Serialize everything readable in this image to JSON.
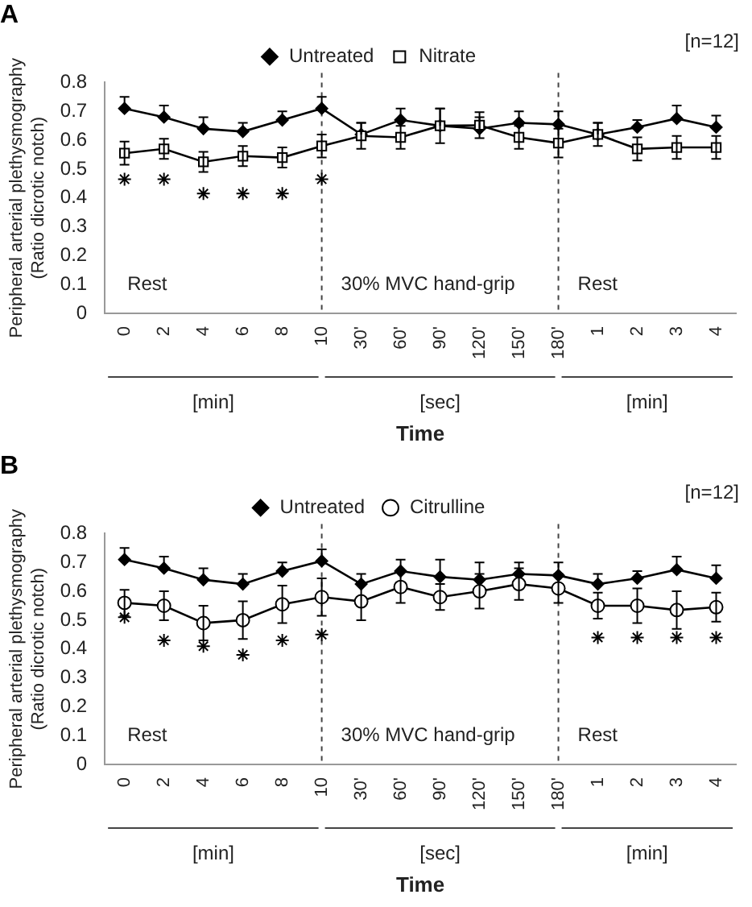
{
  "chart_data": [
    {
      "type": "line",
      "title": "A",
      "categories": [
        "0",
        "2",
        "4",
        "6",
        "8",
        "10",
        "30'",
        "60'",
        "90'",
        "120'",
        "150'",
        "180'",
        "1",
        "2",
        "3",
        "4"
      ],
      "xlabel": "Time",
      "ylabel": "Peripheral arterial plethysmography\n(Ratio dicrotic notch)",
      "ylim": [
        0,
        0.8
      ],
      "yticks": [
        0,
        0.1,
        0.2,
        0.3,
        0.4,
        0.5,
        0.6,
        0.7,
        0.8
      ],
      "legend": "top",
      "grid": false,
      "series": [
        {
          "name": "Untreated",
          "color": "#000000",
          "marker": "diamond",
          "values": [
            0.71,
            0.68,
            0.64,
            0.63,
            0.67,
            0.71,
            0.62,
            0.67,
            0.65,
            0.64,
            0.66,
            0.655,
            0.62,
            0.645,
            0.675,
            0.645
          ],
          "errors": [
            [
              0.71,
              0.75
            ],
            [
              0.68,
              0.72
            ],
            [
              0.64,
              0.68
            ],
            [
              0.63,
              0.66
            ],
            [
              0.67,
              0.7
            ],
            [
              0.71,
              0.75
            ],
            [
              0.62,
              0.66
            ],
            [
              0.67,
              0.71
            ],
            [
              0.65,
              0.71
            ],
            [
              0.64,
              0.68
            ],
            [
              0.66,
              0.7
            ],
            [
              0.655,
              0.7
            ],
            [
              0.62,
              0.66
            ],
            [
              0.645,
              0.67
            ],
            [
              0.675,
              0.72
            ],
            [
              0.645,
              0.685
            ]
          ]
        },
        {
          "name": "Nitrate",
          "color": "#000000",
          "marker": "square",
          "values": [
            0.555,
            0.57,
            0.525,
            0.545,
            0.54,
            0.58,
            0.615,
            0.61,
            0.65,
            0.652,
            0.61,
            0.59,
            0.62,
            0.57,
            0.575,
            0.575
          ],
          "errors": [
            0.04,
            0.035,
            0.035,
            0.035,
            0.035,
            0.04,
            0.045,
            0.04,
            0.06,
            0.045,
            0.04,
            0.05,
            0.04,
            0.04,
            0.04,
            0.04
          ]
        },
        {
          "type": "scatter",
          "color": "#000000",
          "marker": "cross",
          "values": [
            0.465,
            0.465,
            0.415,
            0.415,
            0.415,
            0.465,
            null,
            null,
            null,
            null,
            null,
            null,
            null,
            null,
            null,
            null
          ]
        }
      ],
      "ref_lines": [
        {
          "axis": "x",
          "value": "10",
          "line_style": "dashed"
        },
        {
          "axis": "x",
          "value": "180'",
          "line_style": "dashed"
        }
      ],
      "annotations": [
        "[n=12]",
        "Rest",
        "30% MVC hand-grip",
        "Rest",
        "[min]",
        "[sec]",
        "[min]"
      ]
    },
    {
      "type": "line",
      "title": "B",
      "categories": [
        "0",
        "2",
        "4",
        "6",
        "8",
        "10",
        "30'",
        "60'",
        "90'",
        "120'",
        "150'",
        "180'",
        "1",
        "2",
        "3",
        "4"
      ],
      "xlabel": "Time",
      "ylabel": "Peripheral arterial plethysmography\n(Ratio dicrotic notch)",
      "ylim": [
        0,
        0.8
      ],
      "yticks": [
        0,
        0.1,
        0.2,
        0.3,
        0.4,
        0.5,
        0.6,
        0.7,
        0.8
      ],
      "legend": "top",
      "grid": false,
      "series": [
        {
          "name": "Untreated",
          "color": "#000000",
          "marker": "diamond",
          "values": [
            0.71,
            0.68,
            0.64,
            0.625,
            0.67,
            0.705,
            0.625,
            0.67,
            0.65,
            0.64,
            0.66,
            0.655,
            0.625,
            0.645,
            0.675,
            0.645
          ],
          "errors": [
            [
              0.71,
              0.75
            ],
            [
              0.68,
              0.72
            ],
            [
              0.64,
              0.68
            ],
            [
              0.625,
              0.66
            ],
            [
              0.67,
              0.7
            ],
            [
              0.705,
              0.745
            ],
            [
              0.625,
              0.66
            ],
            [
              0.67,
              0.71
            ],
            [
              0.65,
              0.71
            ],
            [
              0.64,
              0.7
            ],
            [
              0.66,
              0.7
            ],
            [
              0.655,
              0.7
            ],
            [
              0.625,
              0.66
            ],
            [
              0.645,
              0.67
            ],
            [
              0.675,
              0.72
            ],
            [
              0.645,
              0.69
            ]
          ]
        },
        {
          "name": "Citrulline",
          "color": "#000000",
          "marker": "circle",
          "values": [
            0.56,
            0.55,
            0.49,
            0.5,
            0.555,
            0.58,
            0.565,
            0.615,
            0.58,
            0.6,
            0.625,
            0.61,
            0.55,
            0.55,
            0.535,
            0.545
          ],
          "errors": [
            0.045,
            0.05,
            0.06,
            0.065,
            0.065,
            0.065,
            0.065,
            0.055,
            0.045,
            0.06,
            0.055,
            0.05,
            0.045,
            0.06,
            0.065,
            0.05
          ]
        },
        {
          "type": "scatter",
          "color": "#000000",
          "marker": "cross",
          "values": [
            0.51,
            0.43,
            0.41,
            0.38,
            0.43,
            0.45,
            null,
            null,
            null,
            null,
            null,
            null,
            0.44,
            0.44,
            0.44,
            0.44
          ]
        }
      ],
      "ref_lines": [
        {
          "axis": "x",
          "value": "10",
          "line_style": "dashed"
        },
        {
          "axis": "x",
          "value": "180'",
          "line_style": "dashed"
        }
      ],
      "annotations": [
        "[n=12]",
        "Rest",
        "30% MVC hand-grip",
        "Rest",
        "[min]",
        "[sec]",
        "[min]"
      ]
    }
  ]
}
